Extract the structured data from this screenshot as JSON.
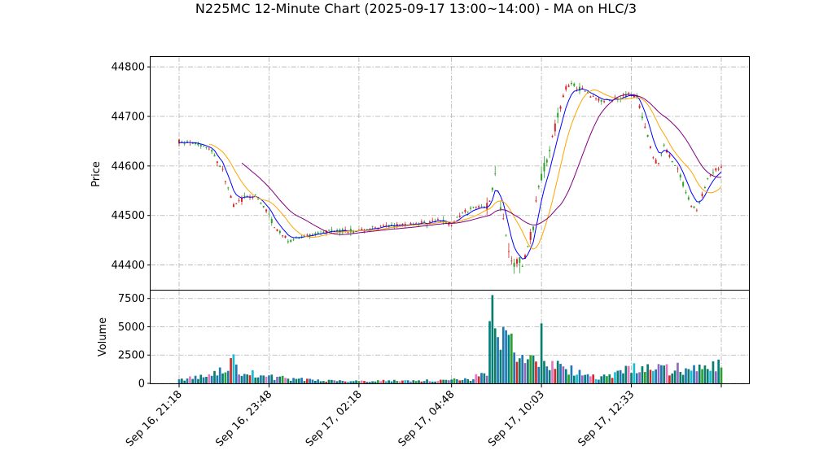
{
  "chart_data": {
    "type": "candlestick",
    "title": "N225MC 12-Minute Chart (2025-09-17 13:00~14:00) - MA on HLC/3",
    "price_panel": {
      "ylabel": "Price",
      "ylim": [
        44350,
        44820
      ],
      "yticks": [
        "44400",
        "44500",
        "44600",
        "44700",
        "44800"
      ],
      "up_color": "#2ca02c",
      "down_color": "#d62728"
    },
    "volume_panel": {
      "ylabel": "Volume",
      "ylim": [
        0,
        8200
      ],
      "yticks": [
        "0",
        "2500",
        "5000",
        "7500"
      ]
    },
    "x_tick_labels": [
      "Sep 16, 21:18",
      "Sep 16, 23:48",
      "Sep 17, 02:18",
      "Sep 17, 04:48",
      "Sep 17, 10:03",
      "Sep 17, 12:33"
    ],
    "grid": true,
    "ma_colors": [
      "#0000ff",
      "#ffa500",
      "#800080"
    ],
    "price_anchors": [
      [
        0,
        44648
      ],
      [
        8,
        44644
      ],
      [
        12,
        44630
      ],
      [
        16,
        44590
      ],
      [
        20,
        44520
      ],
      [
        24,
        44535
      ],
      [
        28,
        44540
      ],
      [
        32,
        44510
      ],
      [
        36,
        44470
      ],
      [
        40,
        44450
      ],
      [
        44,
        44455
      ],
      [
        48,
        44460
      ],
      [
        56,
        44470
      ],
      [
        64,
        44468
      ],
      [
        72,
        44475
      ],
      [
        80,
        44480
      ],
      [
        88,
        44485
      ],
      [
        96,
        44490
      ],
      [
        100,
        44482
      ],
      [
        104,
        44508
      ],
      [
        108,
        44515
      ],
      [
        112,
        44520
      ],
      [
        114,
        44528
      ],
      [
        116,
        44580
      ],
      [
        118,
        44520
      ],
      [
        120,
        44460
      ],
      [
        122,
        44400
      ],
      [
        124,
        44410
      ],
      [
        126,
        44395
      ],
      [
        128,
        44440
      ],
      [
        130,
        44480
      ],
      [
        132,
        44560
      ],
      [
        134,
        44600
      ],
      [
        136,
        44640
      ],
      [
        138,
        44680
      ],
      [
        140,
        44720
      ],
      [
        142,
        44760
      ],
      [
        144,
        44765
      ],
      [
        148,
        44755
      ],
      [
        152,
        44740
      ],
      [
        156,
        44730
      ],
      [
        160,
        44735
      ],
      [
        164,
        44745
      ],
      [
        168,
        44740
      ],
      [
        170,
        44700
      ],
      [
        172,
        44660
      ],
      [
        174,
        44615
      ],
      [
        176,
        44605
      ],
      [
        178,
        44640
      ],
      [
        180,
        44620
      ],
      [
        182,
        44600
      ],
      [
        184,
        44580
      ],
      [
        186,
        44545
      ],
      [
        188,
        44520
      ],
      [
        190,
        44510
      ],
      [
        192,
        44540
      ],
      [
        194,
        44575
      ],
      [
        196,
        44590
      ],
      [
        199,
        44595
      ]
    ],
    "volume_anchors": [
      [
        0,
        350
      ],
      [
        10,
        600
      ],
      [
        16,
        1100
      ],
      [
        20,
        1800
      ],
      [
        24,
        900
      ],
      [
        30,
        700
      ],
      [
        36,
        500
      ],
      [
        44,
        350
      ],
      [
        56,
        250
      ],
      [
        70,
        220
      ],
      [
        90,
        250
      ],
      [
        100,
        300
      ],
      [
        108,
        400
      ],
      [
        113,
        1200
      ],
      [
        116,
        4200
      ],
      [
        120,
        3500
      ],
      [
        124,
        1800
      ],
      [
        128,
        2300
      ],
      [
        132,
        2000
      ],
      [
        136,
        1700
      ],
      [
        140,
        1500
      ],
      [
        144,
        1300
      ],
      [
        148,
        800
      ],
      [
        152,
        600
      ],
      [
        156,
        550
      ],
      [
        160,
        900
      ],
      [
        164,
        1200
      ],
      [
        168,
        1400
      ],
      [
        172,
        1300
      ],
      [
        176,
        1250
      ],
      [
        180,
        1200
      ],
      [
        184,
        1300
      ],
      [
        188,
        1250
      ],
      [
        192,
        1300
      ],
      [
        196,
        1400
      ],
      [
        199,
        1500
      ]
    ]
  }
}
